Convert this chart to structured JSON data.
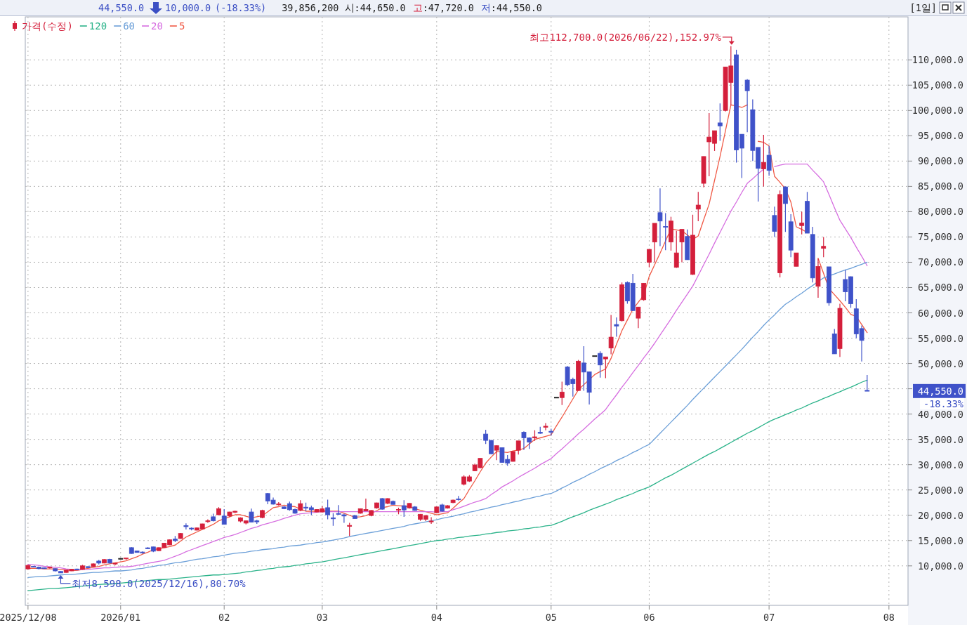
{
  "chart_data": {
    "type": "candlestick",
    "categories": [
      "2025/12/08",
      null,
      null,
      null,
      null,
      null,
      null,
      null,
      null,
      null,
      null,
      null,
      null,
      null,
      null,
      null,
      null,
      "2026/01",
      null,
      null,
      null,
      null,
      null,
      null,
      null,
      null,
      null,
      null,
      null,
      null,
      null,
      null,
      null,
      null,
      null,
      null,
      "02",
      null,
      null,
      null,
      null,
      null,
      null,
      null,
      null,
      null,
      null,
      null,
      null,
      null,
      null,
      null,
      null,
      null,
      "03",
      null,
      null,
      null,
      null,
      null,
      null,
      null,
      null,
      null,
      null,
      null,
      null,
      null,
      null,
      null,
      null,
      null,
      null,
      null,
      null,
      "04",
      null,
      null,
      null,
      null,
      null,
      null,
      null,
      null,
      null,
      null,
      null,
      null,
      null,
      null,
      null,
      null,
      null,
      null,
      null,
      null,
      "05",
      null,
      null,
      null,
      null,
      null,
      null,
      null,
      null,
      null,
      null,
      null,
      null,
      null,
      null,
      null,
      null,
      null,
      "06",
      null,
      null,
      null,
      null,
      null,
      null,
      null,
      null,
      null,
      null,
      null,
      null,
      null,
      null,
      null,
      null,
      null,
      null,
      null,
      null,
      null,
      "07",
      null,
      null,
      null,
      null,
      null,
      null,
      null,
      null,
      null,
      null,
      null,
      null,
      null,
      null,
      null,
      null,
      null,
      null,
      null,
      null,
      null,
      "08",
      null,
      null,
      null
    ],
    "series": [
      {
        "name": "5",
        "type": "line",
        "color": "#f05a46",
        "values": [
          9500,
          9500,
          9500,
          9400,
          9400,
          9400,
          9300,
          9200,
          9100,
          9100,
          9300,
          9500,
          9700,
          9900,
          10200,
          10400,
          10600,
          10800,
          11000,
          11400,
          11800,
          12300,
          12700,
          13200,
          13400,
          13600,
          13800,
          14100,
          14900,
          15700,
          16200,
          16700,
          17200,
          17700,
          18200,
          18900,
          19300,
          19700,
          20100,
          20100,
          19800,
          19500,
          19700,
          19900,
          20700,
          21500,
          21700,
          22000,
          21800,
          21700,
          21200,
          20800,
          20800,
          20800,
          20900,
          20800,
          20800,
          20800,
          20400,
          20000,
          19600,
          19700,
          19900,
          20400,
          20900,
          21500,
          21700,
          22000,
          21900,
          21800,
          21700,
          21300,
          21000,
          20700,
          20400,
          20100,
          20300,
          20500,
          21400,
          22400,
          23300,
          25100,
          26800,
          28600,
          30300,
          31500,
          32600,
          32500,
          32400,
          32700,
          32900,
          33200,
          34100,
          35000,
          35300,
          35600,
          35900,
          37700,
          39400,
          41200,
          43000,
          44800,
          45800,
          46800,
          47800,
          48400,
          48900,
          51000,
          53800,
          56500,
          58600,
          60700,
          62100,
          63500,
          67200,
          69500,
          71800,
          74200,
          76600,
          76400,
          76200,
          75400,
          74500,
          75200,
          78400,
          81500,
          86200,
          90900,
          96000,
          101100,
          100900,
          100600,
          101100,
          null,
          93900,
          93700,
          93000,
          87000,
          85800,
          84500,
          81900,
          77000,
          76500,
          75900,
          null,
          70800,
          67800,
          64800,
          63600,
          62400,
          61100,
          59700,
          59300,
          57700,
          56100,
          null,
          null,
          null,
          null,
          null,
          null,
          null
        ]
      },
      {
        "name": "20",
        "type": "line",
        "color": "#d66ee0",
        "values": [
          10300,
          10200,
          10100,
          9900,
          9800,
          9700,
          9600,
          9400,
          9300,
          9200,
          9300,
          9300,
          9400,
          9500,
          9600,
          9600,
          9700,
          9800,
          9800,
          9900,
          10100,
          10300,
          10500,
          10700,
          10900,
          11100,
          11500,
          11900,
          12300,
          12800,
          13200,
          13600,
          14000,
          14400,
          14800,
          15200,
          15600,
          15900,
          16200,
          16600,
          17000,
          17400,
          17700,
          18100,
          18400,
          18700,
          19000,
          19400,
          19700,
          20000,
          20300,
          20400,
          20500,
          20600,
          20700,
          20700,
          20700,
          20700,
          20700,
          20700,
          20700,
          20700,
          20700,
          20700,
          20700,
          20700,
          20700,
          20700,
          20700,
          20700,
          20700,
          20700,
          20700,
          20700,
          20700,
          20600,
          20700,
          20700,
          21100,
          21400,
          21800,
          22200,
          22600,
          22900,
          23300,
          24100,
          24800,
          25600,
          26200,
          26800,
          27500,
          28100,
          28700,
          29300,
          30000,
          30600,
          31200,
          32200,
          33100,
          34100,
          35100,
          36100,
          37000,
          38000,
          39000,
          39900,
          40900,
          42400,
          43800,
          45300,
          46700,
          48200,
          49600,
          51100,
          52500,
          54000,
          55600,
          57200,
          58800,
          60500,
          62100,
          63700,
          65300,
          67400,
          69500,
          71600,
          73800,
          75900,
          78000,
          80100,
          81900,
          83800,
          85600,
          86500,
          87500,
          88400,
          null,
          88900,
          89200,
          89400,
          89400,
          89400,
          89400,
          89400,
          88200,
          87100,
          85900,
          83400,
          80800,
          78300,
          76600,
          74900,
          73000,
          71200,
          69300,
          null,
          null,
          null,
          null,
          null,
          null,
          null
        ]
      },
      {
        "name": "60",
        "type": "line",
        "color": "#6b9fd8",
        "values": [
          7700,
          7800,
          7900,
          7900,
          8000,
          8100,
          8200,
          8300,
          8300,
          8400,
          8500,
          8600,
          8700,
          8700,
          8800,
          8900,
          9000,
          9000,
          9100,
          9200,
          9400,
          9500,
          9700,
          9900,
          10100,
          10200,
          10400,
          10600,
          10700,
          10900,
          11100,
          11300,
          11400,
          11600,
          11800,
          11900,
          12100,
          12300,
          12500,
          12600,
          12700,
          12900,
          13000,
          13200,
          13300,
          13400,
          13600,
          13700,
          13900,
          14000,
          14100,
          14300,
          14400,
          14600,
          14700,
          14900,
          15100,
          15300,
          15500,
          15800,
          16000,
          16200,
          16400,
          16600,
          16800,
          17000,
          17200,
          17400,
          17600,
          17800,
          18100,
          18300,
          18500,
          18700,
          18900,
          19100,
          19400,
          19600,
          19800,
          20100,
          20300,
          20600,
          20800,
          21100,
          21300,
          21600,
          21800,
          22100,
          22300,
          22600,
          22800,
          23100,
          23300,
          23600,
          23800,
          24100,
          24300,
          24800,
          25400,
          25900,
          26500,
          27000,
          27500,
          28100,
          28600,
          29200,
          29700,
          30200,
          30800,
          31300,
          31800,
          32400,
          32900,
          33500,
          34000,
          35100,
          36200,
          37300,
          38400,
          39500,
          40600,
          41700,
          42900,
          44000,
          45100,
          46200,
          47300,
          48400,
          49500,
          50600,
          51700,
          52800,
          54000,
          55200,
          56300,
          57500,
          58600,
          59600,
          60700,
          61700,
          62400,
          63200,
          63900,
          64700,
          65400,
          66200,
          66900,
          67300,
          67700,
          68100,
          68500,
          68800,
          69200,
          69600,
          70000,
          null,
          null,
          null,
          null,
          null,
          null,
          null
        ]
      },
      {
        "name": "120",
        "type": "line",
        "color": "#2bb38a",
        "values": [
          5100,
          5200,
          5300,
          5400,
          5500,
          5500,
          5600,
          5700,
          5800,
          5900,
          6000,
          6100,
          6200,
          6300,
          6400,
          6400,
          6500,
          6600,
          6700,
          6800,
          6900,
          7000,
          7100,
          7200,
          7300,
          7300,
          7400,
          7500,
          7600,
          7700,
          7800,
          7900,
          8000,
          8100,
          8200,
          8200,
          8300,
          8400,
          8500,
          8600,
          8800,
          8900,
          9100,
          9200,
          9400,
          9500,
          9700,
          9800,
          9900,
          10100,
          10200,
          10400,
          10500,
          10700,
          10800,
          11000,
          11200,
          11400,
          11600,
          11800,
          12000,
          12200,
          12400,
          12600,
          12800,
          13000,
          13200,
          13400,
          13600,
          13800,
          14000,
          14200,
          14400,
          14600,
          14800,
          15000,
          15100,
          15300,
          15400,
          15600,
          15700,
          15900,
          16000,
          16100,
          16300,
          16400,
          16600,
          16700,
          16900,
          17000,
          17100,
          17300,
          17400,
          17600,
          17700,
          17900,
          18000,
          18400,
          18800,
          19300,
          19700,
          20100,
          20500,
          21000,
          21400,
          21800,
          22200,
          22600,
          23100,
          23500,
          23900,
          24300,
          24800,
          25200,
          25600,
          26200,
          26800,
          27400,
          27900,
          28500,
          29100,
          29700,
          30300,
          30900,
          31500,
          32100,
          32600,
          33200,
          33800,
          34400,
          35000,
          35600,
          36200,
          36700,
          37300,
          37900,
          38500,
          39000,
          39400,
          39900,
          40300,
          40800,
          41200,
          41700,
          42200,
          42600,
          43100,
          43500,
          44000,
          44400,
          44900,
          45300,
          45800,
          46300,
          46700,
          null,
          null,
          null,
          null,
          null,
          null,
          null
        ]
      },
      {
        "name": "가격(수정)",
        "type": "candlestick",
        "color": "#d41f3b",
        "ohlc": [
          [
            9400,
            10200,
            9300,
            10100
          ],
          [
            9900,
            9950,
            9700,
            9750
          ],
          [
            9750,
            9800,
            9300,
            9450
          ],
          [
            9600,
            9650,
            9400,
            9450
          ],
          [
            9650,
            9850,
            9450,
            9700
          ],
          [
            9450,
            9500,
            8900,
            9000
          ],
          [
            8900,
            8950,
            8598,
            8600
          ],
          [
            8700,
            9250,
            8650,
            9200
          ],
          [
            9000,
            9400,
            8950,
            9350
          ],
          [
            9350,
            9450,
            9150,
            9250
          ],
          [
            9300,
            10200,
            9250,
            10000
          ],
          [
            9850,
            9900,
            9600,
            9650
          ],
          [
            9850,
            10500,
            9800,
            10400
          ],
          [
            10950,
            11200,
            10300,
            10550
          ],
          [
            10550,
            11300,
            10500,
            11250
          ],
          [
            11300,
            11400,
            10500,
            10550
          ],
          [
            10400,
            10550,
            10150,
            10500
          ],
          [
            11400,
            11550,
            11300,
            11400
          ],
          [
            11400,
            11600,
            11200,
            11550
          ],
          [
            13600,
            13700,
            12400,
            12450
          ],
          [
            12950,
            13000,
            12600,
            12650
          ],
          [
            12700,
            12850,
            12400,
            12600
          ],
          [
            13550,
            13700,
            13300,
            13400
          ],
          [
            13750,
            13800,
            12700,
            12900
          ],
          [
            13000,
            13650,
            12950,
            13600
          ],
          [
            13600,
            14550,
            13550,
            14500
          ],
          [
            14150,
            15200,
            14100,
            15150
          ],
          [
            15300,
            15900,
            14700,
            15000
          ],
          [
            15400,
            16500,
            15350,
            16400
          ],
          [
            17950,
            18400,
            17200,
            17750
          ],
          [
            17450,
            17600,
            17000,
            17300
          ],
          [
            17050,
            17600,
            17000,
            17500
          ],
          [
            17300,
            18350,
            17250,
            18300
          ],
          [
            18750,
            19200,
            18500,
            18900
          ],
          [
            19700,
            20300,
            18800,
            18900
          ],
          [
            20100,
            21600,
            20000,
            21300
          ],
          [
            19850,
            21200,
            18200,
            18200
          ],
          [
            19850,
            20700,
            19600,
            20650
          ],
          [
            20600,
            20900,
            20400,
            20800
          ],
          [
            18850,
            19600,
            18600,
            19500
          ],
          [
            18450,
            18950,
            18200,
            18900
          ],
          [
            20650,
            21300,
            18600,
            18650
          ],
          [
            18900,
            19100,
            18300,
            18700
          ],
          [
            19550,
            21100,
            19400,
            20950
          ],
          [
            24300,
            24400,
            22200,
            22800
          ],
          [
            23000,
            23500,
            22100,
            22200
          ],
          [
            22100,
            22600,
            21900,
            22200
          ],
          [
            21650,
            21800,
            21200,
            21300
          ],
          [
            22300,
            22700,
            20900,
            21100
          ],
          [
            21150,
            21300,
            20300,
            20400
          ],
          [
            20950,
            23000,
            20800,
            22300
          ],
          [
            21600,
            22500,
            20800,
            21400
          ],
          [
            21500,
            21900,
            20000,
            21100
          ],
          [
            20650,
            21200,
            20550,
            21150
          ],
          [
            20650,
            21800,
            20550,
            21300
          ],
          [
            21500,
            23100,
            19200,
            20100
          ],
          [
            19500,
            20400,
            17900,
            19300
          ],
          [
            20350,
            22000,
            20100,
            20200
          ],
          [
            20100,
            20300,
            18500,
            19850
          ],
          [
            17800,
            18500,
            15900,
            18000
          ],
          [
            19950,
            20000,
            19300,
            19350
          ],
          [
            20400,
            21350,
            20300,
            21300
          ],
          [
            20850,
            23300,
            20800,
            21150
          ],
          [
            19950,
            21000,
            19800,
            20950
          ],
          [
            21450,
            22500,
            21300,
            22450
          ],
          [
            23300,
            23400,
            21100,
            21200
          ],
          [
            22350,
            23350,
            22200,
            23300
          ],
          [
            22750,
            22900,
            22100,
            22150
          ],
          [
            21000,
            21500,
            20200,
            21150
          ],
          [
            21900,
            23000,
            19700,
            21050
          ],
          [
            21450,
            22400,
            21300,
            22350
          ],
          [
            21650,
            21800,
            20900,
            20950
          ],
          [
            19200,
            20250,
            18900,
            20200
          ],
          [
            19200,
            20000,
            18850,
            19950
          ],
          [
            18700,
            19600,
            18300,
            18850
          ],
          [
            20500,
            21700,
            20400,
            21650
          ],
          [
            22050,
            22300,
            20700,
            20800
          ],
          [
            21400,
            22000,
            21300,
            21900
          ],
          [
            22500,
            23100,
            22400,
            23000
          ],
          [
            23200,
            23800,
            22900,
            23100
          ],
          [
            26150,
            27900,
            25900,
            27600
          ],
          [
            26750,
            27950,
            26600,
            27600
          ],
          [
            28800,
            30200,
            28700,
            29950
          ],
          [
            29400,
            31250,
            29300,
            31250
          ],
          [
            36050,
            36900,
            34100,
            34800
          ],
          [
            34800,
            34850,
            32100,
            32150
          ],
          [
            32850,
            33800,
            30900,
            33750
          ],
          [
            33350,
            33400,
            30400,
            30450
          ],
          [
            31050,
            31900,
            29800,
            30300
          ],
          [
            30650,
            32650,
            30600,
            32600
          ],
          [
            32850,
            34700,
            32000,
            34700
          ],
          [
            36400,
            36600,
            32900,
            35300
          ],
          [
            35300,
            35400,
            33100,
            34450
          ],
          [
            35300,
            36800,
            34700,
            35500
          ],
          [
            36400,
            37500,
            36100,
            36200
          ],
          [
            37400,
            38200,
            36800,
            37600
          ],
          [
            36600,
            37100,
            35700,
            36400
          ],
          [
            43250,
            43250,
            43250,
            43250
          ],
          [
            43250,
            46400,
            41800,
            44350
          ],
          [
            49300,
            49500,
            45500,
            45800
          ],
          [
            46850,
            47200,
            43450,
            46000
          ],
          [
            44650,
            50700,
            44600,
            50450
          ],
          [
            50100,
            53400,
            44600,
            48300
          ],
          [
            48350,
            48400,
            41900,
            44300
          ],
          [
            51450,
            51450,
            51450,
            51450
          ],
          [
            52000,
            52400,
            47200,
            49700
          ],
          [
            50900,
            51300,
            47100,
            51300
          ],
          [
            53050,
            59600,
            51800,
            55200
          ],
          [
            57700,
            59100,
            55300,
            57400
          ],
          [
            58450,
            66000,
            58300,
            65550
          ],
          [
            66000,
            66200,
            61800,
            62350
          ],
          [
            65850,
            67700,
            60400,
            60450
          ],
          [
            58950,
            61200,
            57000,
            61150
          ],
          [
            62600,
            65900,
            62400,
            65850
          ],
          [
            70000,
            72600,
            69000,
            72550
          ],
          [
            74000,
            77700,
            70000,
            77700
          ],
          [
            79800,
            84600,
            73200,
            78150
          ],
          [
            77050,
            79700,
            72400,
            76950
          ],
          [
            74000,
            79000,
            72300,
            78150
          ],
          [
            69000,
            76200,
            68900,
            71850
          ],
          [
            74000,
            76500,
            70000,
            76500
          ],
          [
            75100,
            76500,
            70500,
            70500
          ],
          [
            67600,
            79400,
            67500,
            75350
          ],
          [
            80500,
            83900,
            78100,
            81300
          ],
          [
            85600,
            90900,
            84800,
            90900
          ],
          [
            93800,
            99500,
            87000,
            94750
          ],
          [
            93500,
            96000,
            92000,
            96000
          ],
          [
            97550,
            101400,
            94000,
            96950
          ],
          [
            100000,
            108600,
            99800,
            108600
          ],
          [
            105550,
            112700,
            101000,
            108800
          ],
          [
            111000,
            112000,
            89700,
            92200
          ],
          [
            95300,
            95300,
            86650,
            92550
          ],
          [
            106000,
            106200,
            95700,
            103900
          ],
          [
            100150,
            102200,
            90000,
            92100
          ],
          [
            92700,
            92700,
            82000,
            88550
          ],
          [
            88450,
            95200,
            85000,
            89750
          ],
          [
            91150,
            93000,
            87100,
            88150
          ],
          [
            79250,
            81000,
            75000,
            76100
          ],
          [
            67900,
            84200,
            67000,
            83400
          ],
          [
            84900,
            85000,
            76000,
            81600
          ],
          [
            78000,
            79500,
            71000,
            72400
          ],
          [
            69200,
            71850,
            69200,
            71850
          ],
          [
            77250,
            80000,
            75500,
            77750
          ],
          [
            82050,
            83900,
            75750,
            75750
          ],
          [
            75500,
            77000,
            66000,
            66900
          ],
          [
            65250,
            70700,
            63000,
            69150
          ],
          [
            72750,
            75000,
            71000,
            73150
          ],
          [
            69100,
            69100,
            61400,
            62000
          ],
          [
            55850,
            56800,
            51900,
            51900
          ],
          [
            52950,
            61800,
            51300,
            60900
          ],
          [
            66600,
            68500,
            62300,
            64150
          ],
          [
            67150,
            67200,
            61000,
            61800
          ],
          [
            60800,
            62700,
            55000,
            55850
          ],
          [
            56900,
            57500,
            50400,
            54550
          ],
          [
            44650,
            47720,
            44550,
            44550
          ],
          null,
          null,
          null,
          null,
          null,
          null,
          null
        ],
        "colors": [
          "#d41f3b",
          "#3f52c9",
          "#3f52c9",
          "#3f52c9",
          "#d41f3b",
          "#3f52c9",
          "#3f52c9",
          "#d41f3b",
          "#d41f3b",
          "#3f52c9",
          "#d41f3b",
          "#3f52c9",
          "#d41f3b",
          "#3f52c9",
          "#d41f3b",
          "#3f52c9",
          "#d41f3b",
          "#222222",
          "#d41f3b",
          "#3f52c9",
          "#3f52c9",
          "#3f52c9",
          "#3f52c9",
          "#3f52c9",
          "#d41f3b",
          "#d41f3b",
          "#d41f3b",
          "#3f52c9",
          "#d41f3b",
          "#3f52c9",
          "#3f52c9",
          "#d41f3b",
          "#d41f3b",
          "#d41f3b",
          "#3f52c9",
          "#d41f3b",
          "#3f52c9",
          "#d41f3b",
          "#d41f3b",
          "#d41f3b",
          "#d41f3b",
          "#3f52c9",
          "#3f52c9",
          "#d41f3b",
          "#3f52c9",
          "#3f52c9",
          "#d41f3b",
          "#3f52c9",
          "#3f52c9",
          "#3f52c9",
          "#d41f3b",
          "#3f52c9",
          "#3f52c9",
          "#d41f3b",
          "#d41f3b",
          "#3f52c9",
          "#3f52c9",
          "#3f52c9",
          "#3f52c9",
          "#d41f3b",
          "#3f52c9",
          "#d41f3b",
          "#d41f3b",
          "#d41f3b",
          "#d41f3b",
          "#3f52c9",
          "#d41f3b",
          "#3f52c9",
          "#d41f3b",
          "#3f52c9",
          "#d41f3b",
          "#3f52c9",
          "#d41f3b",
          "#d41f3b",
          "#d41f3b",
          "#d41f3b",
          "#3f52c9",
          "#d41f3b",
          "#d41f3b",
          "#3f52c9",
          "#d41f3b",
          "#d41f3b",
          "#d41f3b",
          "#d41f3b",
          "#3f52c9",
          "#3f52c9",
          "#d41f3b",
          "#3f52c9",
          "#3f52c9",
          "#d41f3b",
          "#d41f3b",
          "#3f52c9",
          "#3f52c9",
          "#d41f3b",
          "#3f52c9",
          "#d41f3b",
          "#3f52c9",
          "#222222",
          "#d41f3b",
          "#3f52c9",
          "#3f52c9",
          "#d41f3b",
          "#3f52c9",
          "#3f52c9",
          "#222222",
          "#3f52c9",
          "#d41f3b",
          "#d41f3b",
          "#3f52c9",
          "#d41f3b",
          "#3f52c9",
          "#3f52c9",
          "#d41f3b",
          "#d41f3b",
          "#d41f3b",
          "#d41f3b",
          "#3f52c9",
          "#3f52c9",
          "#d41f3b",
          "#d41f3b",
          "#d41f3b",
          "#3f52c9",
          "#d41f3b",
          "#d41f3b",
          "#d41f3b",
          "#d41f3b",
          "#d41f3b",
          "#3f52c9",
          "#d41f3b",
          "#d41f3b",
          "#3f52c9",
          "#3f52c9",
          "#3f52c9",
          "#3f52c9",
          "#3f52c9",
          "#d41f3b",
          "#3f52c9",
          "#3f52c9",
          "#d41f3b",
          "#3f52c9",
          "#3f52c9",
          "#d41f3b",
          "#d41f3b",
          "#3f52c9",
          "#3f52c9",
          "#d41f3b",
          "#d41f3b",
          "#3f52c9",
          "#3f52c9",
          "#d41f3b",
          "#3f52c9",
          "#3f52c9",
          "#3f52c9",
          "#3f52c9",
          "#3f52c9",
          null,
          null,
          null,
          null,
          null,
          null,
          null
        ]
      }
    ],
    "ylim": [
      2200,
      118500
    ],
    "yticks": [
      {
        "value": 10000,
        "label": "10,000.0"
      },
      {
        "value": 15000,
        "label": "15,000.0"
      },
      {
        "value": 20000,
        "label": "20,000.0"
      },
      {
        "value": 25000,
        "label": "25,000.0"
      },
      {
        "value": 30000,
        "label": "30,000.0"
      },
      {
        "value": 35000,
        "label": "35,000.0"
      },
      {
        "value": 40000,
        "label": "40,000.0"
      },
      {
        "value": 45000,
        "label": null
      },
      {
        "value": 50000,
        "label": "50,000.0"
      },
      {
        "value": 55000,
        "label": "55,000.0"
      },
      {
        "value": 60000,
        "label": "60,000.0"
      },
      {
        "value": 65000,
        "label": "65,000.0"
      },
      {
        "value": 70000,
        "label": "70,000.0"
      },
      {
        "value": 75000,
        "label": "75,000.0"
      },
      {
        "value": 80000,
        "label": "80,000.0"
      },
      {
        "value": 85000,
        "label": "85,000.0"
      },
      {
        "value": 90000,
        "label": "90,000.0"
      },
      {
        "value": 95000,
        "label": "95,000.0"
      },
      {
        "value": 100000,
        "label": "100,000.0"
      },
      {
        "value": 105000,
        "label": "105,000.0"
      },
      {
        "value": 110000,
        "label": "110,000.0"
      }
    ],
    "grid": true,
    "legend": "top left",
    "annotations": [
      "44,550.0",
      "10,000.0",
      "(-18.33%)",
      "39,856,200",
      "시:44,650.0",
      "고:47,720.0",
      "저:44,550.0",
      "[1일]",
      "최고112,700.0(2026/06/22),152.97%",
      "최저8,598.0(2025/12/16),80.70%",
      "44,550.0",
      "-18.33%"
    ]
  }
}
